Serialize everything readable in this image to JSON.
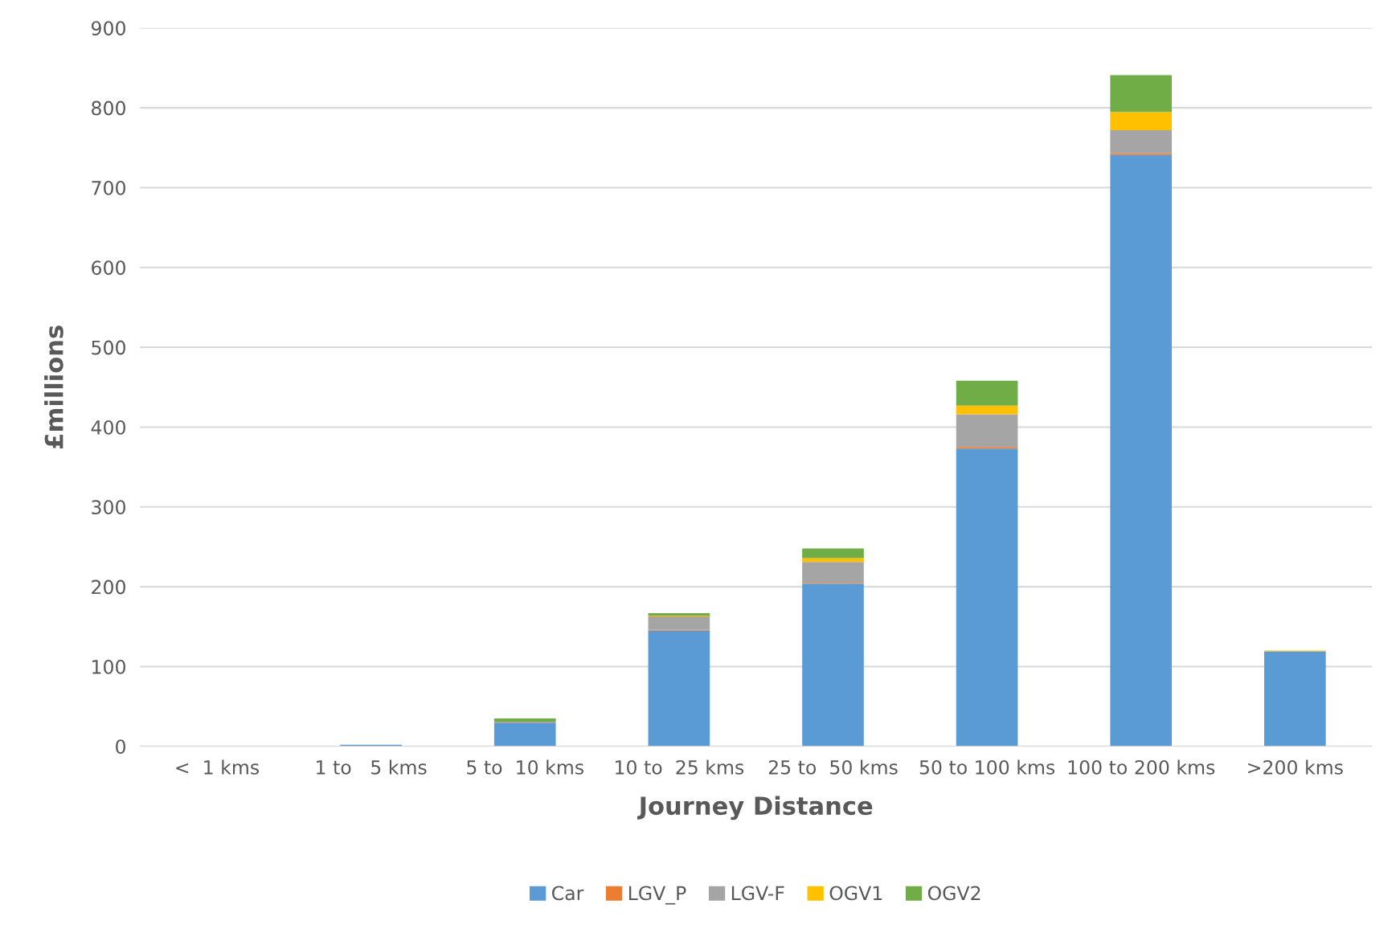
{
  "chart_data": {
    "type": "bar",
    "stacked": true,
    "xlabel": "Journey Distance",
    "ylabel": "£millions",
    "categories": [
      "<  1 kms",
      "1 to   5 kms",
      "5 to  10 kms",
      "10 to  25 kms",
      "25 to  50 kms",
      "50 to 100 kms",
      "100 to 200 kms",
      ">200 kms"
    ],
    "series": [
      {
        "name": "Car",
        "color": "#5b9bd5",
        "values": [
          0,
          2,
          29,
          145,
          204,
          373,
          741,
          119
        ]
      },
      {
        "name": "LGV_P",
        "color": "#ed7d31",
        "values": [
          0,
          0,
          0,
          1,
          1,
          2,
          2,
          0
        ]
      },
      {
        "name": "LGV-F",
        "color": "#a5a5a5",
        "values": [
          0,
          0,
          2,
          17,
          26,
          41,
          29,
          0
        ]
      },
      {
        "name": "OGV1",
        "color": "#ffc000",
        "values": [
          0,
          0,
          0,
          1,
          5,
          11,
          23,
          1
        ]
      },
      {
        "name": "OGV2",
        "color": "#70ad47",
        "values": [
          0,
          0,
          4,
          3,
          12,
          31,
          46,
          0
        ]
      }
    ],
    "ylim": [
      0,
      900
    ],
    "yticks": [
      0,
      100,
      200,
      300,
      400,
      500,
      600,
      700,
      800,
      900
    ],
    "grid": "y",
    "legend": "bottom"
  }
}
